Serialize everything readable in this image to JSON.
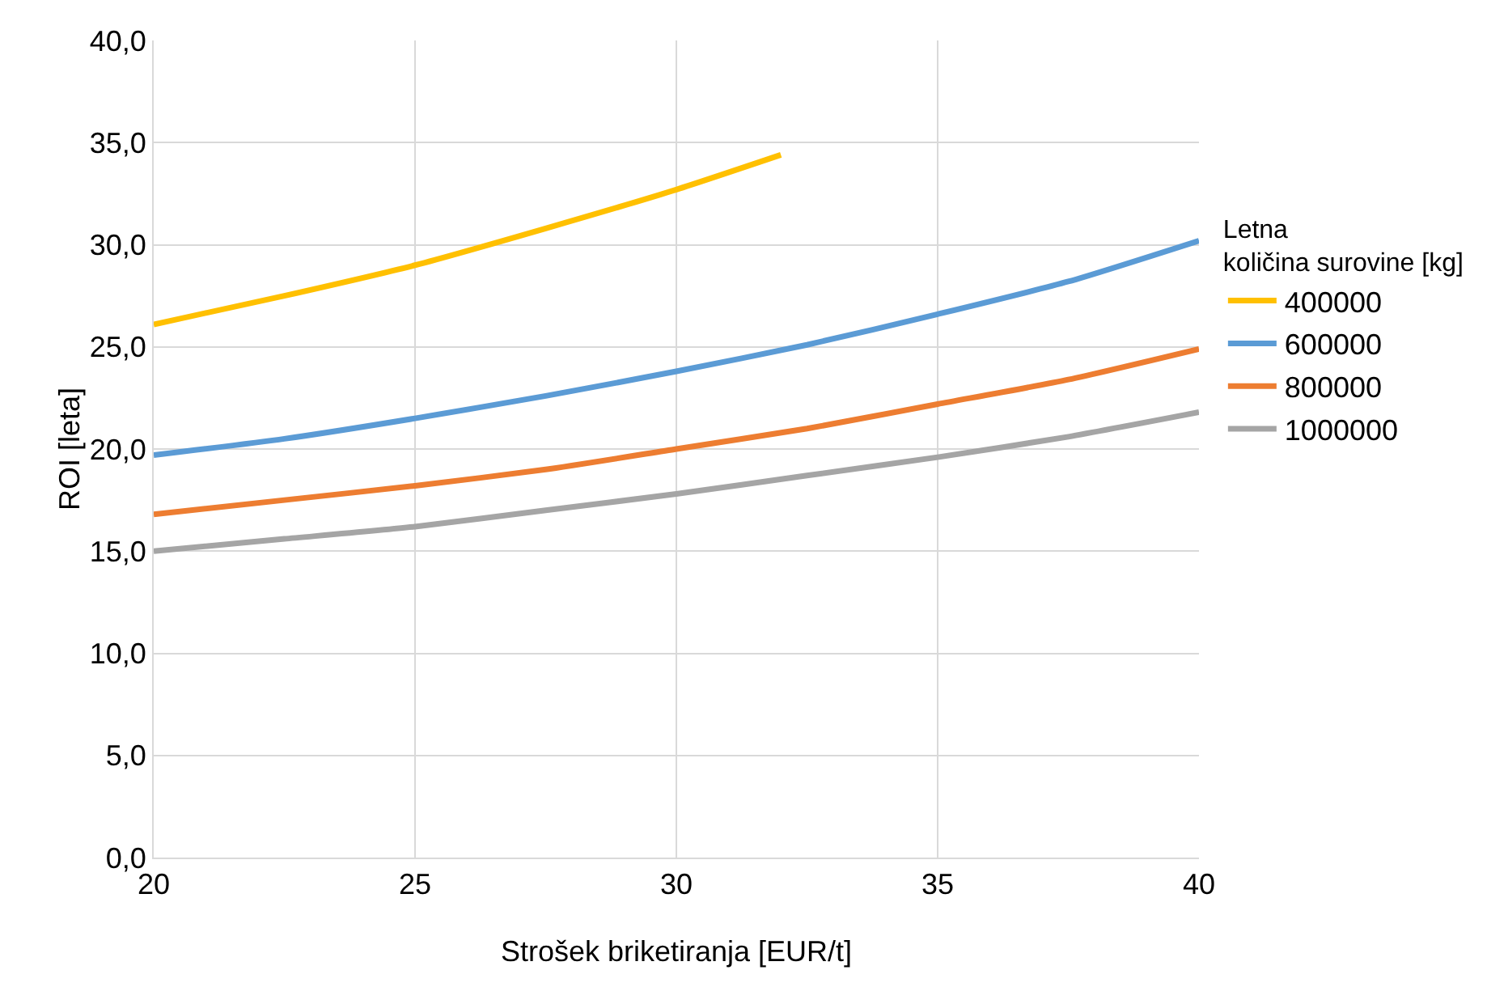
{
  "chart_data": {
    "type": "line",
    "xlabel": "Strošek briketiranja [EUR/t]",
    "ylabel": "ROI [leta]",
    "legend_title": "Letna količina surovine [kg]",
    "legend": "right",
    "grid": true,
    "marker": "none",
    "line_style": "solid",
    "xlim": [
      20,
      40
    ],
    "xticks": [
      20,
      25,
      30,
      35,
      40
    ],
    "ylim": [
      0,
      40
    ],
    "yticks": [
      {
        "value": 0,
        "label": "0,0"
      },
      {
        "value": 5,
        "label": "5,0"
      },
      {
        "value": 10,
        "label": "10,0"
      },
      {
        "value": 15,
        "label": "15,0"
      },
      {
        "value": 20,
        "label": "20,0"
      },
      {
        "value": 25,
        "label": "25,0"
      },
      {
        "value": 30,
        "label": "30,0"
      },
      {
        "value": 35,
        "label": "35,0"
      },
      {
        "value": 40,
        "label": "40,0"
      }
    ],
    "series": [
      {
        "name": "400000",
        "color": "#ffc000",
        "x": [
          20,
          22.5,
          25,
          27.5,
          30,
          32
        ],
        "values": [
          26.1,
          27.5,
          29.0,
          30.8,
          32.7,
          34.4
        ]
      },
      {
        "name": "600000",
        "color": "#5b9bd5",
        "x": [
          20,
          22.5,
          25,
          27.5,
          30,
          32.5,
          35,
          37.5,
          40
        ],
        "values": [
          19.7,
          20.5,
          21.5,
          22.6,
          23.8,
          25.1,
          26.6,
          28.2,
          30.2
        ]
      },
      {
        "name": "800000",
        "color": "#ed7d31",
        "x": [
          20,
          22.5,
          25,
          27.5,
          30,
          32.5,
          35,
          37.5,
          40
        ],
        "values": [
          16.8,
          17.5,
          18.2,
          19.0,
          20.0,
          21.0,
          22.2,
          23.4,
          24.9
        ]
      },
      {
        "name": "1000000",
        "color": "#a5a5a5",
        "x": [
          20,
          22.5,
          25,
          27.5,
          30,
          32.5,
          35,
          37.5,
          40
        ],
        "values": [
          15.0,
          15.6,
          16.2,
          17.0,
          17.8,
          18.7,
          19.6,
          20.6,
          21.8
        ]
      }
    ]
  }
}
